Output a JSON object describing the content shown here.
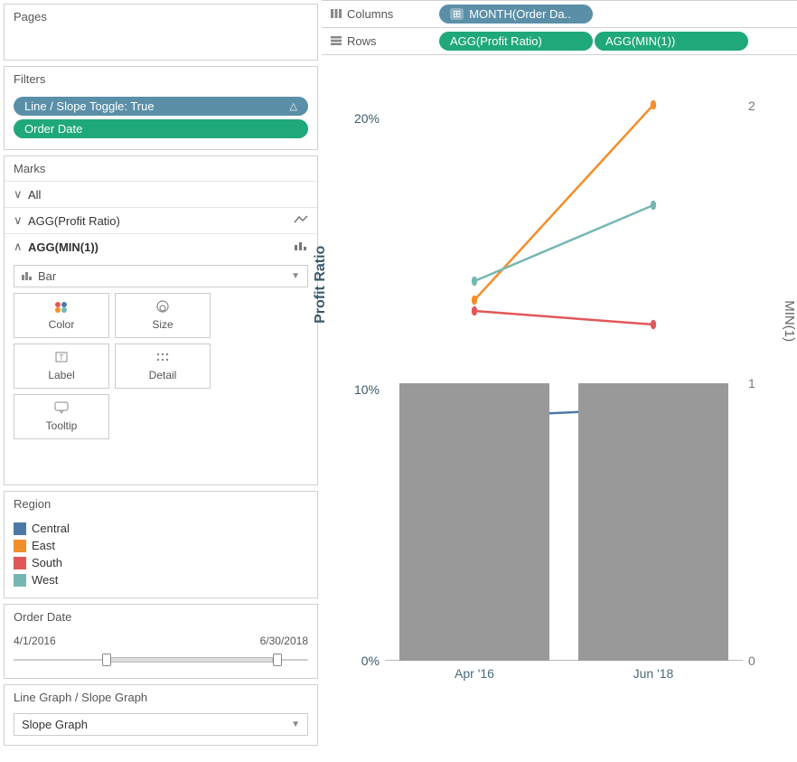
{
  "shelves": {
    "columns_label": "Columns",
    "rows_label": "Rows",
    "columns_pills": [
      {
        "label": "MONTH(Order Da..",
        "color": "#5b8fa8",
        "plus": true
      }
    ],
    "rows_pills": [
      {
        "label": "AGG(Profit Ratio)",
        "color": "#1fa87a"
      },
      {
        "label": "AGG(MIN(1))",
        "color": "#1fa87a"
      }
    ]
  },
  "pages": {
    "header": "Pages"
  },
  "filters": {
    "header": "Filters",
    "items": [
      {
        "label": "Line / Slope Toggle: True",
        "color": "#5b8fa8",
        "caret": true
      },
      {
        "label": "Order Date",
        "color": "#1fa87a"
      }
    ]
  },
  "marks": {
    "header": "Marks",
    "rows": [
      {
        "chev": "∨",
        "name": "All",
        "ricon": ""
      },
      {
        "chev": "∨",
        "name": "AGG(Profit Ratio)",
        "ricon": "line"
      },
      {
        "chev": "∧",
        "name": "AGG(MIN(1))",
        "ricon": "bar",
        "bold": true
      }
    ],
    "type_dropdown": "Bar",
    "buttons": [
      {
        "icon": "color",
        "label": "Color"
      },
      {
        "icon": "size",
        "label": "Size"
      },
      {
        "icon": "label",
        "label": "Label"
      },
      {
        "icon": "detail",
        "label": "Detail"
      },
      {
        "icon": "tooltip",
        "label": "Tooltip"
      }
    ]
  },
  "legend": {
    "header": "Region",
    "items": [
      {
        "label": "Central",
        "color": "#4e79a7"
      },
      {
        "label": "East",
        "color": "#f28e2b"
      },
      {
        "label": "South",
        "color": "#e15759"
      },
      {
        "label": "West",
        "color": "#76b7b2"
      }
    ]
  },
  "date_filter": {
    "header": "Order Date",
    "from": "4/1/2016",
    "to": "6/30/2018",
    "handle_from_pct": 30,
    "handle_to_pct": 88
  },
  "parameter": {
    "header": "Line Graph / Slope Graph",
    "value": "Slope Graph"
  },
  "chart": {
    "y_left": {
      "title": "Profit Ratio",
      "ticks": [
        {
          "v": 0,
          "label": "0%"
        },
        {
          "v": 10,
          "label": "10%"
        },
        {
          "v": 20,
          "label": "20%"
        }
      ],
      "min": 0,
      "max": 22,
      "color": "#3a5a6a"
    },
    "y_right": {
      "title": "MIN(1)",
      "ticks": [
        {
          "v": 0,
          "label": "0"
        },
        {
          "v": 1,
          "label": "1"
        },
        {
          "v": 2,
          "label": "2"
        }
      ],
      "min": 0,
      "max": 2.15,
      "color": "#666"
    },
    "x": {
      "categories": [
        "Apr '16",
        "Jun '18"
      ]
    },
    "bars": {
      "color": "#999999",
      "width_pct": 42,
      "values": [
        1,
        1
      ]
    },
    "lines": [
      {
        "region": "East",
        "color": "#f28e2b",
        "values": [
          13.3,
          20.5
        ],
        "width": 2.5
      },
      {
        "region": "West",
        "color": "#76b7b2",
        "values": [
          14.0,
          16.8
        ],
        "width": 2.5
      },
      {
        "region": "South",
        "color": "#e15759",
        "values": [
          12.9,
          12.4
        ],
        "width": 2.5
      },
      {
        "region": "Central",
        "color": "#4e79a7",
        "values": [
          9.0,
          9.3
        ],
        "width": 2.5
      }
    ],
    "marker_radius": 3
  }
}
